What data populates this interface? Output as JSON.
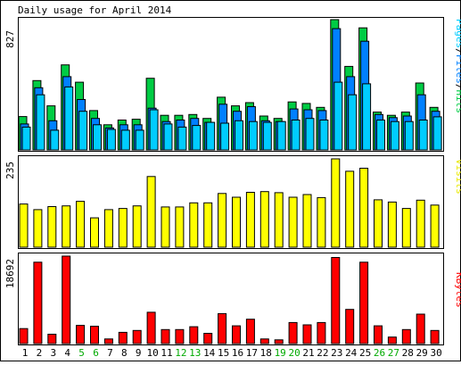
{
  "title": "Daily usage for April 2014",
  "colors": {
    "hits": "#00cc44",
    "files": "#0080ff",
    "pages": "#00ccff",
    "visits": "#ffff00",
    "kbytes": "#ff0000",
    "day_normal": "#000000",
    "day_weekend": "#00aa00",
    "frame": "#000000",
    "background": "#ffffff"
  },
  "chart_data": [
    {
      "type": "bar",
      "name": "pages-files-hits",
      "max_label": "827",
      "legend": [
        "Pages",
        "/",
        "Files",
        "/",
        "Hits"
      ],
      "ylim": [
        0,
        827
      ],
      "categories": [
        "1",
        "2",
        "3",
        "4",
        "5",
        "6",
        "7",
        "8",
        "9",
        "10",
        "11",
        "12",
        "13",
        "14",
        "15",
        "16",
        "17",
        "18",
        "19",
        "20",
        "21",
        "22",
        "23",
        "24",
        "25",
        "26",
        "27",
        "28",
        "29",
        "30"
      ],
      "series": [
        {
          "name": "Hits",
          "values": [
            212,
            440,
            280,
            540,
            430,
            250,
            160,
            190,
            195,
            455,
            220,
            220,
            225,
            200,
            335,
            280,
            300,
            215,
            200,
            305,
            295,
            270,
            827,
            530,
            775,
            240,
            220,
            240,
            425,
            270
          ]
        },
        {
          "name": "Files",
          "values": [
            165,
            395,
            185,
            465,
            320,
            200,
            140,
            160,
            160,
            265,
            180,
            190,
            200,
            175,
            290,
            245,
            275,
            185,
            180,
            260,
            255,
            250,
            770,
            465,
            690,
            225,
            205,
            215,
            350,
            245
          ]
        },
        {
          "name": "Pages",
          "values": [
            145,
            350,
            125,
            400,
            245,
            160,
            130,
            125,
            125,
            255,
            165,
            145,
            155,
            175,
            170,
            185,
            180,
            175,
            180,
            190,
            200,
            190,
            430,
            350,
            420,
            190,
            180,
            180,
            190,
            210
          ]
        }
      ]
    },
    {
      "type": "bar",
      "name": "visits",
      "max_label": "235",
      "legend": [
        "Visits"
      ],
      "ylim": [
        0,
        235
      ],
      "categories": [
        "1",
        "2",
        "3",
        "4",
        "5",
        "6",
        "7",
        "8",
        "9",
        "10",
        "11",
        "12",
        "13",
        "14",
        "15",
        "16",
        "17",
        "18",
        "19",
        "20",
        "21",
        "22",
        "23",
        "24",
        "25",
        "26",
        "27",
        "28",
        "29",
        "30"
      ],
      "series": [
        {
          "name": "Visits",
          "values": [
            115,
            100,
            108,
            110,
            122,
            78,
            100,
            103,
            110,
            188,
            107,
            107,
            118,
            118,
            143,
            133,
            146,
            148,
            145,
            133,
            140,
            132,
            235,
            202,
            210,
            126,
            120,
            103,
            125,
            112
          ]
        }
      ]
    },
    {
      "type": "bar",
      "name": "kbytes",
      "max_label": "18692",
      "legend": [
        "KBytes"
      ],
      "ylim": [
        0,
        18692
      ],
      "categories": [
        "1",
        "2",
        "3",
        "4",
        "5",
        "6",
        "7",
        "8",
        "9",
        "10",
        "11",
        "12",
        "13",
        "14",
        "15",
        "16",
        "17",
        "18",
        "19",
        "20",
        "21",
        "22",
        "23",
        "24",
        "25",
        "26",
        "27",
        "28",
        "29",
        "30"
      ],
      "series": [
        {
          "name": "KBytes",
          "values": [
            3200,
            17400,
            2000,
            18692,
            3900,
            3700,
            1000,
            2400,
            2800,
            6700,
            3000,
            3000,
            3600,
            2200,
            6400,
            3800,
            5200,
            1000,
            800,
            4500,
            4000,
            4500,
            18400,
            7300,
            17400,
            3800,
            1400,
            3000,
            6300,
            2800
          ]
        }
      ]
    }
  ],
  "day_labels": [
    {
      "text": "1",
      "weekend": false
    },
    {
      "text": "2",
      "weekend": false
    },
    {
      "text": "3",
      "weekend": false
    },
    {
      "text": "4",
      "weekend": false
    },
    {
      "text": "5",
      "weekend": true
    },
    {
      "text": "6",
      "weekend": true
    },
    {
      "text": "7",
      "weekend": false
    },
    {
      "text": "8",
      "weekend": false
    },
    {
      "text": "9",
      "weekend": false
    },
    {
      "text": "10",
      "weekend": false
    },
    {
      "text": "11",
      "weekend": false
    },
    {
      "text": "12",
      "weekend": true
    },
    {
      "text": "13",
      "weekend": true
    },
    {
      "text": "14",
      "weekend": false
    },
    {
      "text": "15",
      "weekend": false
    },
    {
      "text": "16",
      "weekend": false
    },
    {
      "text": "17",
      "weekend": false
    },
    {
      "text": "18",
      "weekend": false
    },
    {
      "text": "19",
      "weekend": true
    },
    {
      "text": "20",
      "weekend": true
    },
    {
      "text": "21",
      "weekend": false
    },
    {
      "text": "22",
      "weekend": false
    },
    {
      "text": "23",
      "weekend": false
    },
    {
      "text": "24",
      "weekend": false
    },
    {
      "text": "25",
      "weekend": false
    },
    {
      "text": "26",
      "weekend": true
    },
    {
      "text": "27",
      "weekend": true
    },
    {
      "text": "28",
      "weekend": false
    },
    {
      "text": "29",
      "weekend": false
    },
    {
      "text": "30",
      "weekend": false
    }
  ]
}
